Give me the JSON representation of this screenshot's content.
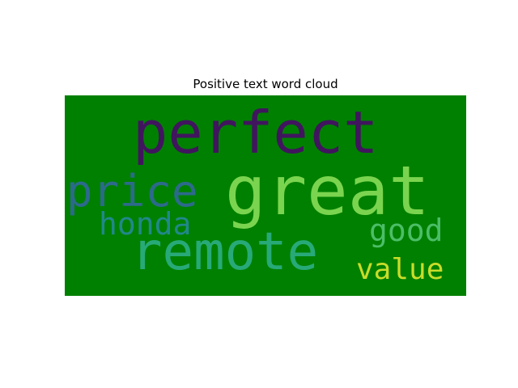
{
  "title": "Positive text word cloud",
  "background_color": "#008000",
  "words": [
    {
      "id": "perfect",
      "text": "perfect",
      "color": "#40155e"
    },
    {
      "id": "great",
      "text": "great",
      "color": "#7bd44f"
    },
    {
      "id": "price",
      "text": "price",
      "color": "#2c6a8b"
    },
    {
      "id": "honda",
      "text": "honda",
      "color": "#21888a"
    },
    {
      "id": "remote",
      "text": "remote",
      "color": "#28a978"
    },
    {
      "id": "good",
      "text": "good",
      "color": "#4cbe67"
    },
    {
      "id": "value",
      "text": "value",
      "color": "#c9dc2a"
    }
  ]
}
